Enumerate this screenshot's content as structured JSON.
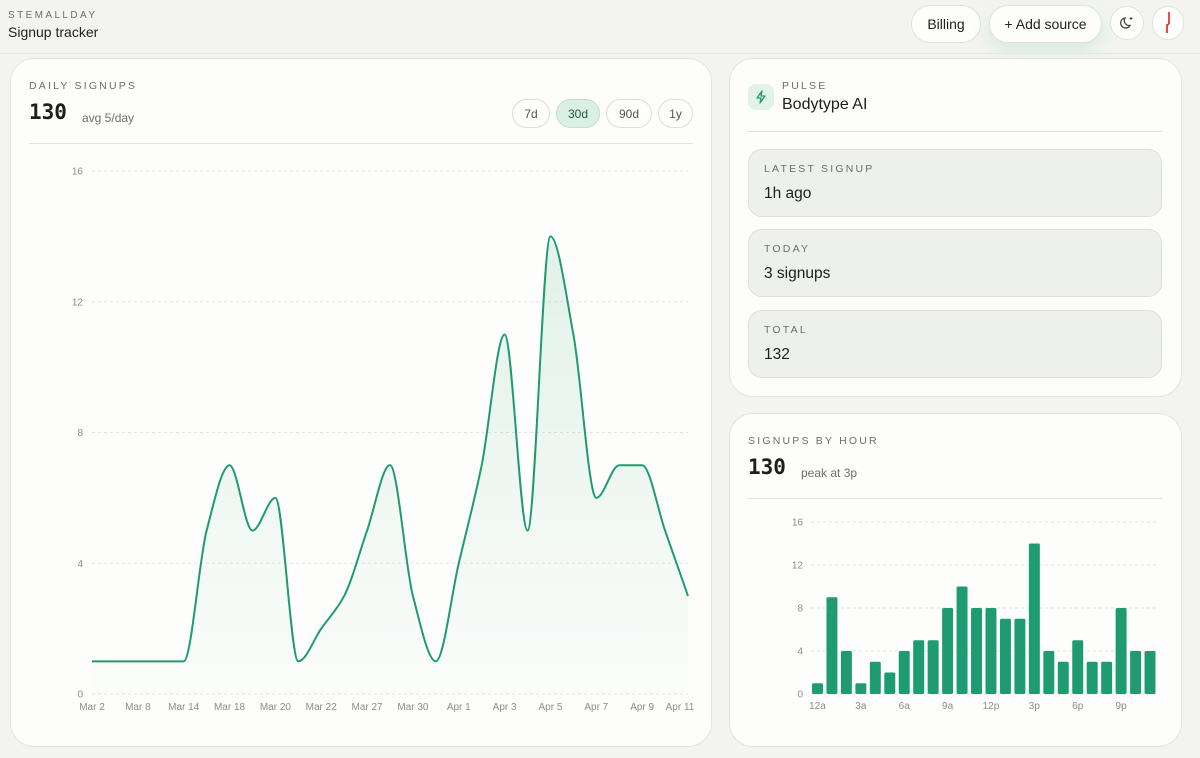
{
  "header": {
    "brand": "STEMALLDAY",
    "title": "Signup tracker",
    "billing_label": "Billing",
    "add_source_label": "+ Add source",
    "theme_icon": "moon-icon",
    "avatar_icon": "avatar"
  },
  "daily": {
    "title": "DAILY SIGNUPS",
    "total": "130",
    "avg": "avg 5/day",
    "ranges": [
      "7d",
      "30d",
      "90d",
      "1y"
    ],
    "active_range": "30d"
  },
  "pulse": {
    "eyebrow": "PULSE",
    "name": "Bodytype AI",
    "icon": "lightning-icon",
    "stats": [
      {
        "label": "LATEST SIGNUP",
        "value": "1h ago"
      },
      {
        "label": "TODAY",
        "value": "3 signups"
      },
      {
        "label": "TOTAL",
        "value": "132"
      }
    ]
  },
  "hourly": {
    "title": "SIGNUPS BY HOUR",
    "total": "130",
    "peak": "peak at 3p"
  },
  "colors": {
    "accent": "#1f9b72",
    "background": "#f3f4f0"
  },
  "chart_data": [
    {
      "type": "area",
      "title": "DAILY SIGNUPS",
      "ylim": [
        0,
        16
      ],
      "yticks": [
        0,
        4,
        8,
        12,
        16
      ],
      "grid": true,
      "xtick_labels": [
        "Mar 2",
        "Mar 8",
        "Mar 14",
        "Mar 18",
        "Mar 20",
        "Mar 22",
        "Mar 27",
        "Mar 30",
        "Apr 1",
        "Apr 3",
        "Apr 5",
        "Apr 7",
        "Apr 9",
        "Apr 11"
      ],
      "values": [
        1,
        1,
        1,
        1,
        1,
        5,
        7,
        5,
        6,
        1,
        2,
        3,
        5,
        7,
        3,
        1,
        4,
        7,
        11,
        5,
        14,
        11,
        6,
        7,
        7,
        5,
        3
      ]
    },
    {
      "type": "bar",
      "title": "SIGNUPS BY HOUR",
      "ylim": [
        0,
        16
      ],
      "yticks": [
        0,
        4,
        8,
        12,
        16
      ],
      "grid": true,
      "categories": [
        "12a",
        "1a",
        "2a",
        "3a",
        "4a",
        "5a",
        "6a",
        "7a",
        "8a",
        "9a",
        "10a",
        "11a",
        "12p",
        "1p",
        "2p",
        "3p",
        "4p",
        "5p",
        "6p",
        "7p",
        "8p",
        "9p",
        "10p",
        "11p"
      ],
      "xtick_labels": [
        "12a",
        "3a",
        "6a",
        "9a",
        "12p",
        "3p",
        "6p",
        "9p"
      ],
      "values": [
        1,
        9,
        4,
        1,
        3,
        2,
        4,
        5,
        5,
        8,
        10,
        8,
        8,
        7,
        7,
        14,
        4,
        3,
        5,
        3,
        3,
        8,
        4,
        4
      ]
    }
  ]
}
